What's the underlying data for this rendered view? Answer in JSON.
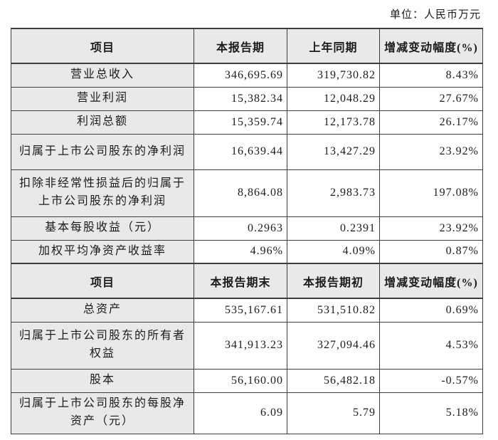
{
  "unit_label": "单位：人民币万元",
  "section1": {
    "headers": [
      "项目",
      "本报告期",
      "上年同期",
      "增减变动幅度(%)"
    ],
    "rows": [
      {
        "item": "营业总收入",
        "current": "346,695.69",
        "prior": "319,730.82",
        "change": "8.43%"
      },
      {
        "item": "营业利润",
        "current": "15,382.34",
        "prior": "12,048.29",
        "change": "27.67%"
      },
      {
        "item": "利润总额",
        "current": "15,359.74",
        "prior": "12,173.78",
        "change": "26.17%"
      },
      {
        "item": "归属于上市公司股东的净利润",
        "current": "16,639.44",
        "prior": "13,427.29",
        "change": "23.92%"
      },
      {
        "item": "扣除非经常性损益后的归属于上市公司股东的净利润",
        "current": "8,864.08",
        "prior": "2,983.73",
        "change": "197.08%"
      },
      {
        "item": "基本每股收益（元）",
        "current": "0.2963",
        "prior": "0.2391",
        "change": "23.92%"
      },
      {
        "item": "加权平均净资产收益率",
        "current": "4.96%",
        "prior": "4.09%",
        "change": "0.87%"
      }
    ]
  },
  "section2": {
    "headers": [
      "项目",
      "本报告期末",
      "本报告期初",
      "增减变动幅度(%)"
    ],
    "rows": [
      {
        "item": "总资产",
        "current": "535,167.61",
        "prior": "531,510.82",
        "change": "0.69%"
      },
      {
        "item": "归属于上市公司股东的所有者权益",
        "current": "341,913.23",
        "prior": "327,094.46",
        "change": "4.53%"
      },
      {
        "item": "股本",
        "current": "56,160.00",
        "prior": "56,482.18",
        "change": "-0.57%"
      },
      {
        "item": "归属于上市公司股东的每股净资产（元）",
        "current": "6.09",
        "prior": "5.79",
        "change": "5.18%"
      }
    ]
  },
  "colors": {
    "header_fill": "#e9e9e9",
    "border": "#3d3d3d",
    "text": "#1b1b1b",
    "background": "#ffffff"
  }
}
